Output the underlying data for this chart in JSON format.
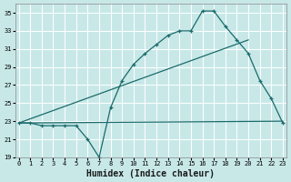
{
  "xlabel": "Humidex (Indice chaleur)",
  "bg_color": "#c8e8e8",
  "grid_color": "#ffffff",
  "line_color": "#1a6b6b",
  "line1_x": [
    0,
    1,
    2,
    3,
    4,
    5,
    6,
    7,
    8,
    9,
    10,
    11,
    12,
    13,
    14,
    15,
    16,
    17,
    18,
    19,
    20,
    21,
    22,
    23
  ],
  "line1_y": [
    22.8,
    22.8,
    22.5,
    22.5,
    22.5,
    22.5,
    21.0,
    19.0,
    24.5,
    27.5,
    29.3,
    30.5,
    31.5,
    32.5,
    33.0,
    33.0,
    35.2,
    35.2,
    33.5,
    32.0,
    30.5,
    27.5,
    25.5,
    22.8
  ],
  "line2_x": [
    0,
    23
  ],
  "line2_y": [
    22.8,
    23.0
  ],
  "line3_x": [
    0,
    20
  ],
  "line3_y": [
    22.8,
    32.0
  ],
  "xlim": [
    -0.3,
    23.3
  ],
  "ylim": [
    19,
    36
  ],
  "yticks": [
    19,
    21,
    23,
    25,
    27,
    29,
    31,
    33,
    35
  ],
  "xticks": [
    0,
    1,
    2,
    3,
    4,
    5,
    6,
    7,
    8,
    9,
    10,
    11,
    12,
    13,
    14,
    15,
    16,
    17,
    18,
    19,
    20,
    21,
    22,
    23
  ],
  "xlabel_fontsize": 7,
  "tick_fontsize": 5
}
